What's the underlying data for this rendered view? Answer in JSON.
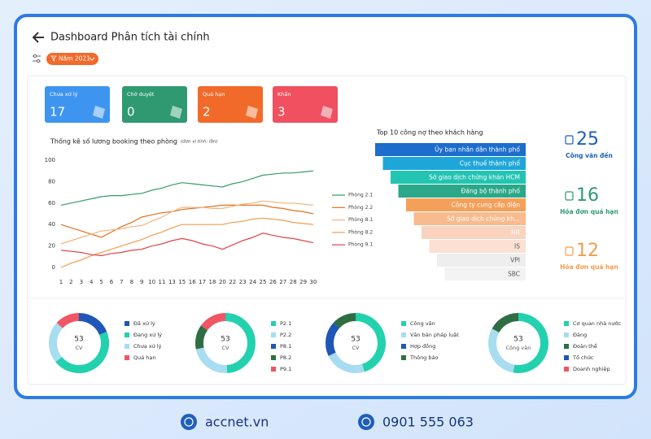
{
  "header": {
    "title": "Dashboard Phân tích tài chính",
    "filter": "Năm 2021"
  },
  "status_cards": [
    {
      "label": "Chưa xử lý",
      "value": 17,
      "color": "#3d95f0"
    },
    {
      "label": "Chờ duyệt",
      "value": 0,
      "color": "#2f9a72"
    },
    {
      "label": "Quá hạn",
      "value": 2,
      "color": "#f26a2a"
    },
    {
      "label": "Khẩn",
      "value": 3,
      "color": "#f0505f"
    }
  ],
  "chart_data": [
    {
      "type": "line",
      "title": "Thống kê số lương booking theo phòng",
      "subtitle": "(đơn vị tính: lần)",
      "categories": [
        1,
        2,
        3,
        4,
        5,
        6,
        7,
        8,
        9,
        10,
        11,
        13,
        15,
        16,
        17,
        18,
        20,
        22,
        23,
        24,
        25,
        26,
        27,
        28,
        29,
        30
      ],
      "ylim": [
        0,
        100
      ],
      "yticks": [
        0,
        20,
        40,
        60,
        80,
        100
      ],
      "legend": "right",
      "series": [
        {
          "name": "Phòng 2.1",
          "color": "#3a9a6c",
          "values": [
            58,
            60,
            62,
            64,
            66,
            67,
            67,
            68,
            69,
            72,
            74,
            77,
            79,
            78,
            77,
            76,
            75,
            78,
            80,
            83,
            86,
            87,
            88,
            88,
            89,
            90
          ]
        },
        {
          "name": "Phòng 2.2",
          "color": "#e2701c",
          "values": [
            40,
            37,
            34,
            31,
            28,
            33,
            38,
            42,
            47,
            49,
            51,
            52,
            54,
            55,
            56,
            57,
            58,
            58,
            58,
            58,
            58,
            56,
            55,
            53,
            52,
            50
          ]
        },
        {
          "name": "Phòng 8.1",
          "color": "#f6b47e",
          "values": [
            22,
            25,
            28,
            31,
            34,
            35,
            36,
            38,
            39,
            43,
            47,
            52,
            56,
            56,
            56,
            55,
            55,
            57,
            59,
            60,
            62,
            61,
            60,
            60,
            59,
            58
          ]
        },
        {
          "name": "Phòng 8.2",
          "color": "#f39c4c",
          "values": [
            0,
            4,
            7,
            11,
            14,
            17,
            20,
            23,
            26,
            30,
            33,
            37,
            40,
            40,
            40,
            40,
            40,
            42,
            43,
            45,
            46,
            45,
            44,
            42,
            41,
            40
          ]
        },
        {
          "name": "Phòng 9.1",
          "color": "#e0454a",
          "values": [
            16,
            15,
            14,
            12,
            11,
            13,
            14,
            16,
            17,
            20,
            22,
            25,
            27,
            25,
            22,
            20,
            17,
            21,
            25,
            28,
            32,
            30,
            28,
            27,
            25,
            23
          ]
        }
      ]
    },
    {
      "type": "pie",
      "total": 53,
      "center_label": "CV",
      "categories": [
        "Đã xử lý",
        "Đang xử lý",
        "Chưa xử lý",
        "Quá hạn"
      ],
      "values": [
        10,
        24,
        12,
        7
      ],
      "colors": [
        "#1f56b8",
        "#22d1ad",
        "#a8dcf0",
        "#f05563"
      ]
    },
    {
      "type": "pie",
      "total": 53,
      "center_label": "CV",
      "categories": [
        "P2.1",
        "P2.2",
        "P8.1",
        "P8.2",
        "P9.1"
      ],
      "values": [
        26,
        12,
        0,
        7,
        8
      ],
      "colors": [
        "#22d1ad",
        "#a8dcf0",
        "#1f56b8",
        "#2e6e42",
        "#f05563"
      ]
    },
    {
      "type": "pie",
      "total": 53,
      "center_label": "CV",
      "categories": [
        "Công văn",
        "Văn bản pháp luật",
        "Hợp đồng",
        "Thông báo"
      ],
      "values": [
        24,
        12,
        10,
        7
      ],
      "colors": [
        "#22d1ad",
        "#a8dcf0",
        "#1f56b8",
        "#2e6e42"
      ]
    },
    {
      "type": "pie",
      "total": 53,
      "center_label": "Công văn",
      "categories": [
        "Cơ quan nhà nước",
        "Đảng",
        "Đoàn thể",
        "Tổ chức",
        "Doanh nghiệp"
      ],
      "values": [
        28,
        16,
        9,
        0,
        0
      ],
      "colors": [
        "#22d1ad",
        "#a8dcf0",
        "#2e6e42",
        "#1f56b8",
        "#f05563"
      ]
    }
  ],
  "top_debtors": {
    "title": "Top 10 công nợ theo khách hàng",
    "items": [
      {
        "label": "Ủy ban nhân dân thành phố",
        "color": "#1c6dcc"
      },
      {
        "label": "Cục thuế thành phố",
        "color": "#1fa6d8"
      },
      {
        "label": "Sở giao dịch chứng khán HCM",
        "color": "#22c4b2"
      },
      {
        "label": "Đảng bộ thành phố",
        "color": "#2aa889"
      },
      {
        "label": "Công ty cung cấp điện",
        "color": "#f5a05a"
      },
      {
        "label": "Sở giao dịch chứng  kh...",
        "color": "#f8bb8e"
      },
      {
        "label": "HR",
        "color": "#f9d3bd"
      },
      {
        "label": "IS",
        "color": "#fbe1d3"
      },
      {
        "label": "VPI",
        "color": "#eeeeee"
      },
      {
        "label": "SBC",
        "color": "#f3f3f3"
      }
    ]
  },
  "stats": [
    {
      "value": 25,
      "label": "Công văn đến",
      "color": "#1f5fb8"
    },
    {
      "value": 16,
      "label": "Hóa đơn quá hạn",
      "color": "#2f9a72"
    },
    {
      "value": 12,
      "label": "Hóa đơn quá hạn",
      "color": "#f39c4c"
    }
  ],
  "footer": {
    "website": "accnet.vn",
    "phone": "0901 555 063"
  }
}
